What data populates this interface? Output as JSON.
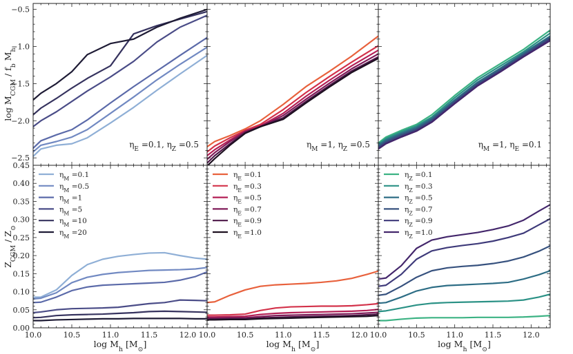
{
  "chart_data": [
    {
      "type": "line",
      "panel": "top-left",
      "xlabel": "",
      "ylabel": "log M_CGM / f_b M_h",
      "xlim": [
        10.0,
        12.25
      ],
      "ylim": [
        -2.6,
        -0.42
      ],
      "x": [
        10.0,
        10.1,
        10.3,
        10.5,
        10.7,
        11.0,
        11.3,
        11.6,
        11.9,
        12.25
      ],
      "annotation": "η_E =0.1, η_Z =0.5",
      "series": [
        {
          "name": "η_M =0.1",
          "color": "#8fafd6",
          "values": [
            -2.48,
            -2.38,
            -2.33,
            -2.31,
            -2.23,
            -2.03,
            -1.82,
            -1.59,
            -1.37,
            -1.12
          ]
        },
        {
          "name": "η_M =0.5",
          "color": "#7189c2",
          "values": [
            -2.42,
            -2.33,
            -2.28,
            -2.22,
            -2.12,
            -1.9,
            -1.68,
            -1.45,
            -1.24,
            -1.01
          ]
        },
        {
          "name": "η_M =1",
          "color": "#5b6aa9",
          "values": [
            -2.37,
            -2.27,
            -2.19,
            -2.12,
            -1.99,
            -1.76,
            -1.54,
            -1.33,
            -1.12,
            -0.88
          ]
        },
        {
          "name": "η_M =5",
          "color": "#4a4c87",
          "values": [
            -2.08,
            -2.0,
            -1.88,
            -1.74,
            -1.6,
            -1.41,
            -1.2,
            -0.94,
            -0.74,
            -0.58
          ]
        },
        {
          "name": "η_M =10",
          "color": "#35325e",
          "values": [
            -1.92,
            -1.83,
            -1.7,
            -1.56,
            -1.43,
            -1.26,
            -0.83,
            -0.72,
            -0.63,
            -0.53
          ]
        },
        {
          "name": "η_M =20",
          "color": "#1e1b35",
          "values": [
            -1.72,
            -1.63,
            -1.5,
            -1.34,
            -1.11,
            -0.96,
            -0.9,
            -0.74,
            -0.62,
            -0.5
          ]
        }
      ]
    },
    {
      "type": "line",
      "panel": "top-middle",
      "xlabel": "",
      "ylabel": "",
      "xlim": [
        10.0,
        12.25
      ],
      "ylim": [
        -2.6,
        -0.42
      ],
      "x": [
        10.0,
        10.1,
        10.3,
        10.5,
        10.7,
        11.0,
        11.3,
        11.6,
        11.9,
        12.25
      ],
      "annotation": "η_M =1, η_Z =0.5",
      "series": [
        {
          "name": "η_E =0.1",
          "color": "#e8613c",
          "values": [
            -2.35,
            -2.28,
            -2.2,
            -2.11,
            -2.0,
            -1.78,
            -1.54,
            -1.34,
            -1.13,
            -0.86
          ]
        },
        {
          "name": "η_E =0.3",
          "color": "#d3324a",
          "values": [
            -2.42,
            -2.34,
            -2.23,
            -2.13,
            -2.05,
            -1.85,
            -1.62,
            -1.41,
            -1.21,
            -0.99
          ]
        },
        {
          "name": "η_E =0.5",
          "color": "#b31e55",
          "values": [
            -2.47,
            -2.39,
            -2.26,
            -2.14,
            -2.07,
            -1.9,
            -1.67,
            -1.46,
            -1.26,
            -1.05
          ]
        },
        {
          "name": "η_E =0.7",
          "color": "#7f1a58",
          "values": [
            -2.52,
            -2.43,
            -2.28,
            -2.15,
            -2.08,
            -1.93,
            -1.71,
            -1.5,
            -1.3,
            -1.1
          ]
        },
        {
          "name": "η_E =0.9",
          "color": "#4d1748",
          "values": [
            -2.57,
            -2.47,
            -2.31,
            -2.16,
            -2.08,
            -1.96,
            -1.74,
            -1.53,
            -1.33,
            -1.14
          ]
        },
        {
          "name": "η_E =1.0",
          "color": "#1d1020",
          "values": [
            -2.61,
            -2.51,
            -2.33,
            -2.17,
            -2.08,
            -1.98,
            -1.76,
            -1.55,
            -1.35,
            -1.16
          ]
        }
      ]
    },
    {
      "type": "line",
      "panel": "top-right",
      "xlabel": "",
      "ylabel": "",
      "xlim": [
        10.0,
        12.25
      ],
      "ylim": [
        -2.6,
        -0.42
      ],
      "x": [
        10.0,
        10.1,
        10.3,
        10.5,
        10.7,
        11.0,
        11.3,
        11.6,
        11.9,
        12.25
      ],
      "annotation": "η_M =1, η_E =0.1",
      "series": [
        {
          "name": "η_Z =0.1",
          "color": "#3bb283",
          "values": [
            -2.3,
            -2.22,
            -2.13,
            -2.05,
            -1.92,
            -1.66,
            -1.42,
            -1.23,
            -1.04,
            -0.78
          ]
        },
        {
          "name": "η_Z =0.3",
          "color": "#2a9185",
          "values": [
            -2.32,
            -2.24,
            -2.15,
            -2.07,
            -1.95,
            -1.69,
            -1.45,
            -1.26,
            -1.07,
            -0.82
          ]
        },
        {
          "name": "η_Z =0.5",
          "color": "#2d6d85",
          "values": [
            -2.33,
            -2.26,
            -2.17,
            -2.09,
            -1.97,
            -1.72,
            -1.48,
            -1.29,
            -1.09,
            -0.86
          ]
        },
        {
          "name": "η_Z =0.7",
          "color": "#36517e",
          "values": [
            -2.35,
            -2.28,
            -2.19,
            -2.11,
            -1.99,
            -1.74,
            -1.5,
            -1.31,
            -1.11,
            -0.88
          ]
        },
        {
          "name": "η_Z =0.9",
          "color": "#3e3a7a",
          "values": [
            -2.37,
            -2.3,
            -2.21,
            -2.13,
            -2.01,
            -1.76,
            -1.52,
            -1.33,
            -1.13,
            -0.9
          ]
        },
        {
          "name": "η_Z =1.0",
          "color": "#43266b",
          "values": [
            -2.38,
            -2.31,
            -2.22,
            -2.14,
            -2.02,
            -1.77,
            -1.53,
            -1.34,
            -1.14,
            -0.92
          ]
        }
      ]
    },
    {
      "type": "line",
      "panel": "bottom-left",
      "xlabel": "log M_h [M_⊙]",
      "ylabel": "Z_CGM / Z_⊙",
      "xlim": [
        10.0,
        12.25
      ],
      "ylim": [
        0.0,
        0.45
      ],
      "x": [
        10.0,
        10.1,
        10.3,
        10.5,
        10.7,
        10.9,
        11.1,
        11.3,
        11.5,
        11.7,
        11.9,
        12.1,
        12.25
      ],
      "legend": "upper-left",
      "series": [
        {
          "name": "η_M =0.1",
          "color": "#8fafd6",
          "values": [
            0.085,
            0.085,
            0.105,
            0.145,
            0.175,
            0.19,
            0.198,
            0.203,
            0.207,
            0.208,
            0.2,
            0.193,
            0.19
          ]
        },
        {
          "name": "η_M =0.5",
          "color": "#7189c2",
          "values": [
            0.08,
            0.082,
            0.097,
            0.125,
            0.14,
            0.148,
            0.153,
            0.156,
            0.159,
            0.16,
            0.161,
            0.163,
            0.167
          ]
        },
        {
          "name": "η_M =1",
          "color": "#5b6aa9",
          "values": [
            0.07,
            0.071,
            0.085,
            0.103,
            0.113,
            0.118,
            0.12,
            0.122,
            0.124,
            0.126,
            0.132,
            0.142,
            0.155
          ]
        },
        {
          "name": "η_M =5",
          "color": "#4a4c87",
          "values": [
            0.042,
            0.044,
            0.05,
            0.053,
            0.054,
            0.055,
            0.057,
            0.062,
            0.067,
            0.07,
            0.077,
            0.076,
            0.075
          ]
        },
        {
          "name": "η_M =10",
          "color": "#35325e",
          "values": [
            0.028,
            0.029,
            0.034,
            0.036,
            0.037,
            0.038,
            0.04,
            0.042,
            0.045,
            0.046,
            0.045,
            0.044,
            0.043
          ]
        },
        {
          "name": "η_M =20",
          "color": "#1e1b35",
          "values": [
            0.02,
            0.02,
            0.022,
            0.023,
            0.024,
            0.025,
            0.025,
            0.026,
            0.026,
            0.026,
            0.026,
            0.025,
            0.025
          ]
        }
      ]
    },
    {
      "type": "line",
      "panel": "bottom-middle",
      "xlabel": "log M_h [M_⊙]",
      "ylabel": "",
      "xlim": [
        10.0,
        12.25
      ],
      "ylim": [
        0.0,
        0.45
      ],
      "x": [
        10.0,
        10.1,
        10.3,
        10.5,
        10.7,
        10.9,
        11.1,
        11.3,
        11.5,
        11.7,
        11.9,
        12.1,
        12.25
      ],
      "legend": "upper-left",
      "series": [
        {
          "name": "η_E =0.1",
          "color": "#e8613c",
          "values": [
            0.07,
            0.072,
            0.09,
            0.105,
            0.115,
            0.119,
            0.121,
            0.123,
            0.126,
            0.13,
            0.137,
            0.148,
            0.157
          ]
        },
        {
          "name": "η_E =0.3",
          "color": "#d3324a",
          "values": [
            0.035,
            0.035,
            0.036,
            0.038,
            0.048,
            0.055,
            0.058,
            0.059,
            0.06,
            0.06,
            0.061,
            0.064,
            0.067
          ]
        },
        {
          "name": "η_E =0.5",
          "color": "#b31e55",
          "values": [
            0.03,
            0.03,
            0.031,
            0.032,
            0.037,
            0.04,
            0.042,
            0.043,
            0.044,
            0.045,
            0.046,
            0.048,
            0.051
          ]
        },
        {
          "name": "η_E =0.7",
          "color": "#7f1a58",
          "values": [
            0.027,
            0.027,
            0.028,
            0.028,
            0.031,
            0.034,
            0.035,
            0.036,
            0.037,
            0.038,
            0.039,
            0.041,
            0.043
          ]
        },
        {
          "name": "η_E =0.9",
          "color": "#4d1748",
          "values": [
            0.024,
            0.024,
            0.025,
            0.025,
            0.027,
            0.029,
            0.03,
            0.031,
            0.032,
            0.033,
            0.034,
            0.036,
            0.038
          ]
        },
        {
          "name": "η_E =1.0",
          "color": "#1d1020",
          "values": [
            0.022,
            0.022,
            0.023,
            0.023,
            0.025,
            0.026,
            0.027,
            0.028,
            0.029,
            0.03,
            0.031,
            0.032,
            0.034
          ]
        }
      ]
    },
    {
      "type": "line",
      "panel": "bottom-right",
      "xlabel": "log M_h [M_⊙]",
      "ylabel": "",
      "xlim": [
        10.0,
        12.25
      ],
      "ylim": [
        0.0,
        0.45
      ],
      "x": [
        10.0,
        10.1,
        10.3,
        10.5,
        10.7,
        10.9,
        11.1,
        11.3,
        11.5,
        11.7,
        11.9,
        12.1,
        12.25
      ],
      "legend": "upper-left",
      "series": [
        {
          "name": "η_Z =0.1",
          "color": "#3bb283",
          "values": [
            0.02,
            0.02,
            0.024,
            0.027,
            0.028,
            0.028,
            0.028,
            0.029,
            0.029,
            0.029,
            0.03,
            0.032,
            0.034
          ]
        },
        {
          "name": "η_Z =0.3",
          "color": "#2a9185",
          "values": [
            0.045,
            0.047,
            0.055,
            0.063,
            0.068,
            0.07,
            0.071,
            0.072,
            0.073,
            0.074,
            0.077,
            0.085,
            0.093
          ]
        },
        {
          "name": "η_Z =0.5",
          "color": "#2d6d85",
          "values": [
            0.068,
            0.07,
            0.085,
            0.102,
            0.112,
            0.117,
            0.119,
            0.121,
            0.123,
            0.126,
            0.135,
            0.147,
            0.158
          ]
        },
        {
          "name": "η_Z =0.7",
          "color": "#36517e",
          "values": [
            0.09,
            0.093,
            0.115,
            0.14,
            0.158,
            0.166,
            0.17,
            0.173,
            0.178,
            0.185,
            0.196,
            0.212,
            0.227
          ]
        },
        {
          "name": "η_Z =0.9",
          "color": "#3e3a7a",
          "values": [
            0.115,
            0.118,
            0.148,
            0.19,
            0.213,
            0.222,
            0.228,
            0.233,
            0.24,
            0.25,
            0.262,
            0.285,
            0.302
          ]
        },
        {
          "name": "η_Z =1.0",
          "color": "#43266b",
          "values": [
            0.135,
            0.138,
            0.172,
            0.22,
            0.243,
            0.252,
            0.258,
            0.264,
            0.272,
            0.282,
            0.298,
            0.323,
            0.341
          ]
        }
      ]
    }
  ]
}
